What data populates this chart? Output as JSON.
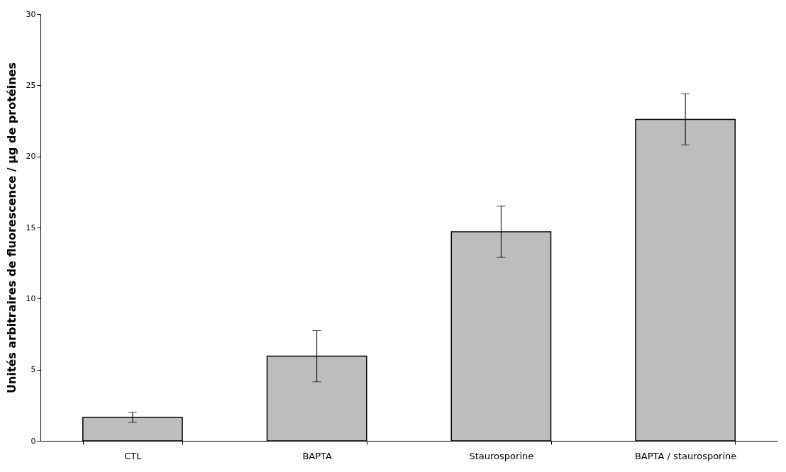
{
  "chart_data": {
    "type": "bar",
    "ylabel": "Unités arbitraires de fluorescence     / µg de protéines",
    "categories": [
      "CTL",
      "BAPTA",
      "Staurosporine",
      "BAPTA / staurosporine"
    ],
    "values": [
      1.65,
      5.95,
      14.7,
      22.6
    ],
    "errors": [
      0.35,
      1.8,
      1.8,
      1.8
    ],
    "color": "#bdbdbd",
    "ylim": [
      0,
      30
    ],
    "yticks": [
      0,
      5,
      10,
      15,
      20,
      25,
      30
    ],
    "grid": false
  }
}
